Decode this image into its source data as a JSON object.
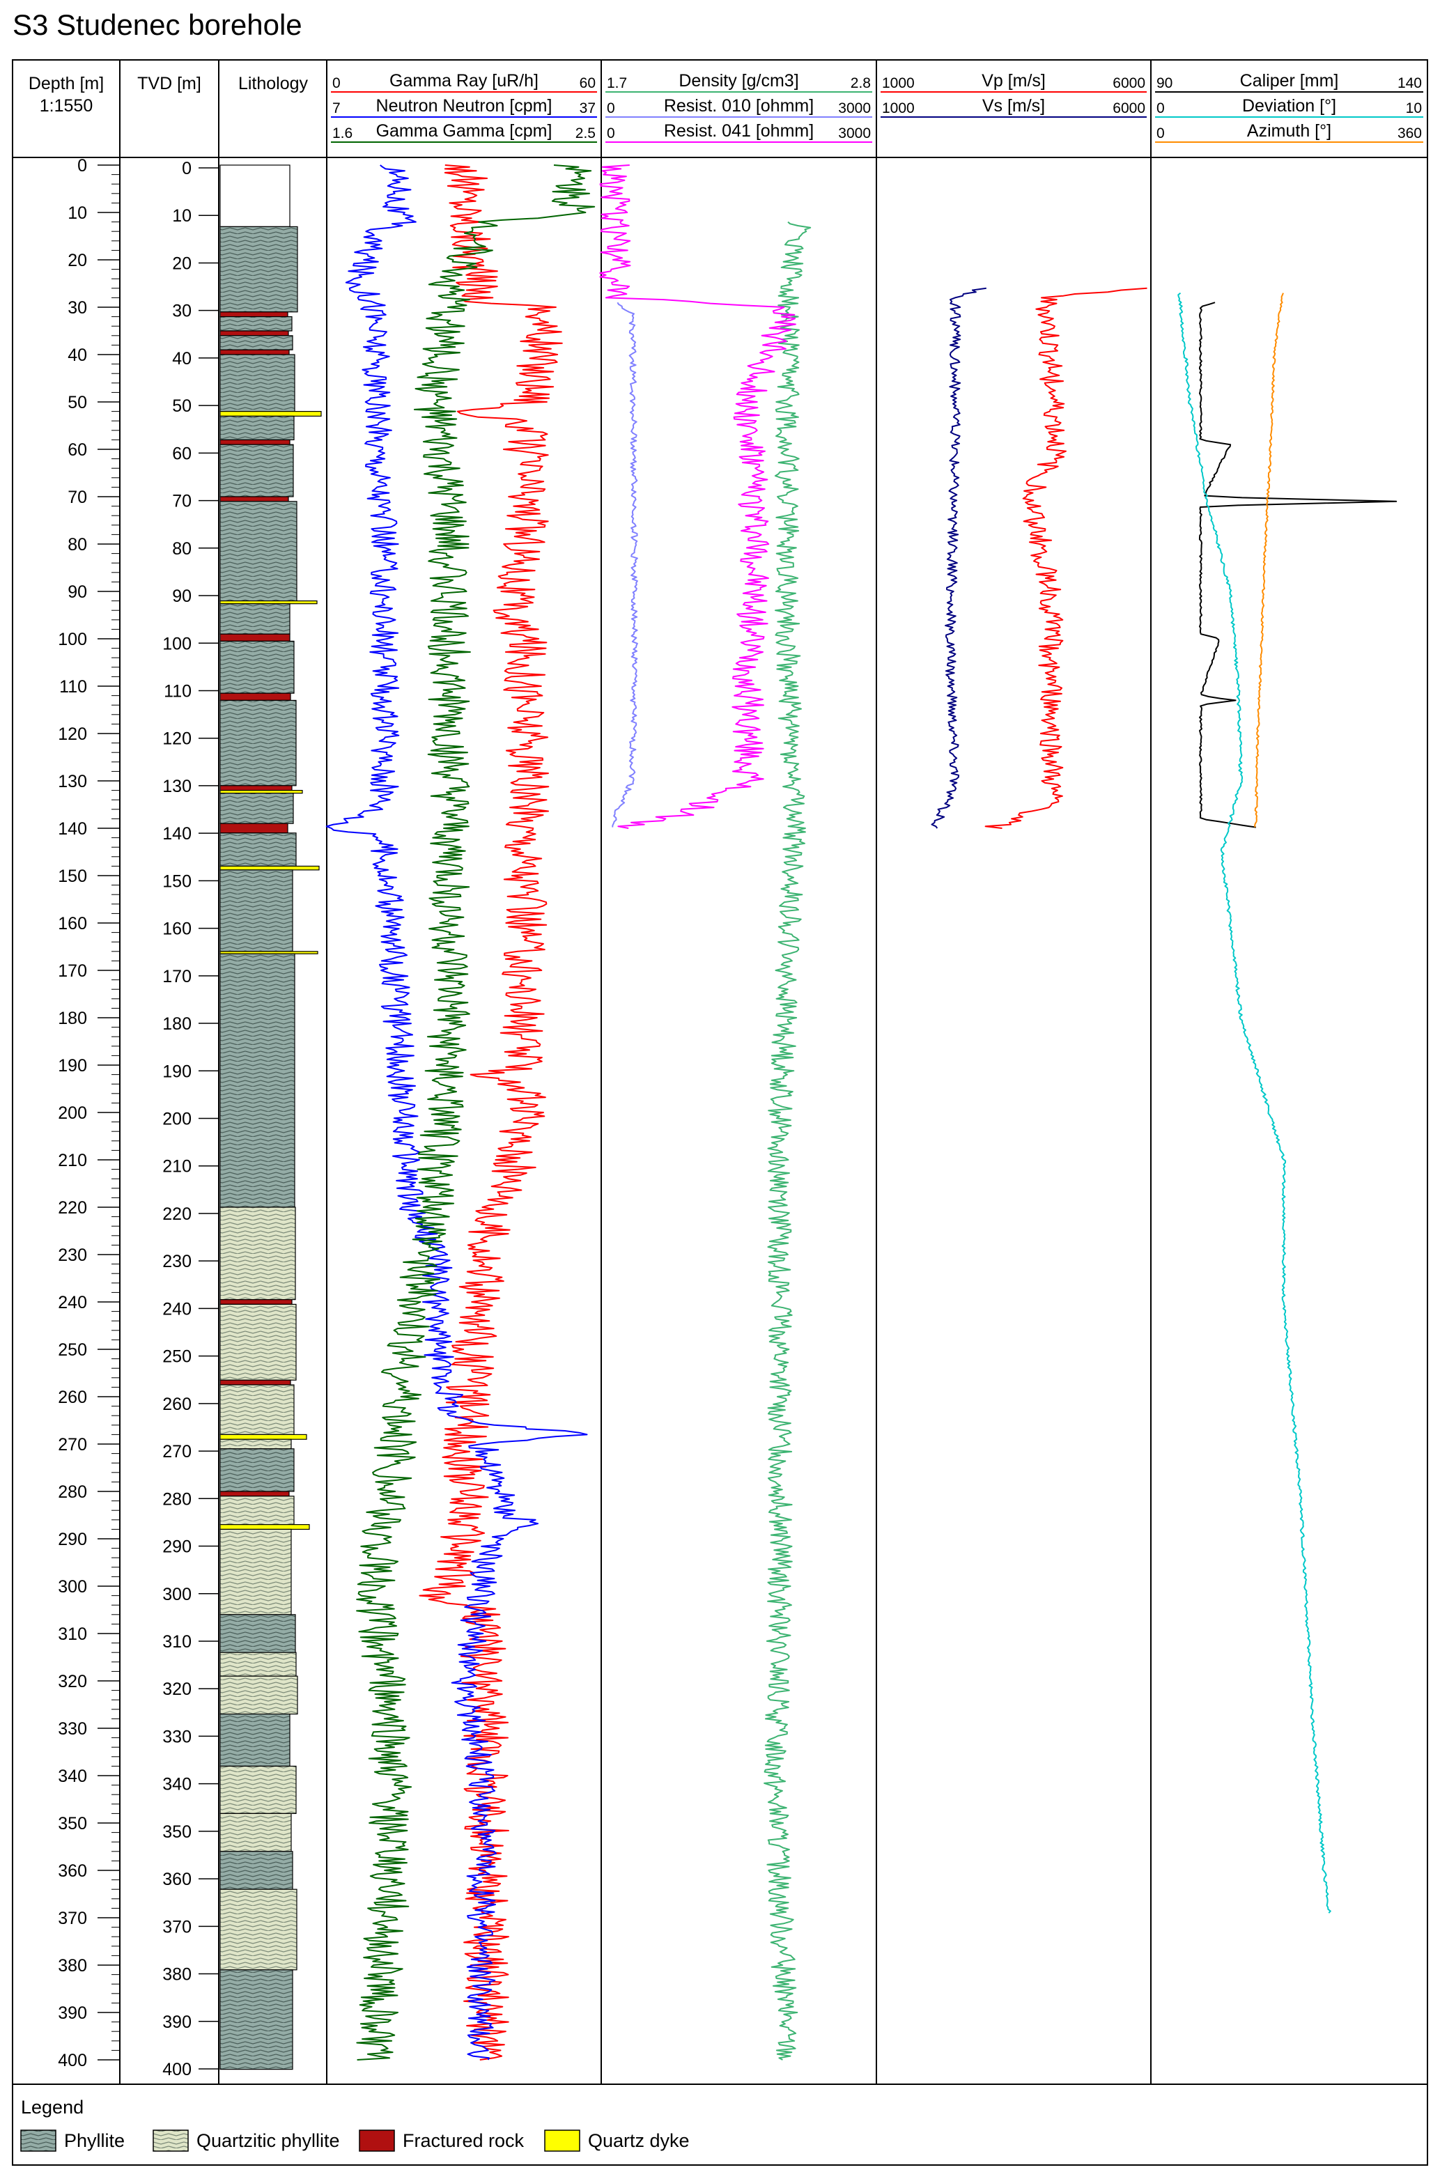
{
  "title": "S3 Studenec borehole",
  "columns": {
    "depth": {
      "label": "Depth [m]",
      "scale": "1:1550"
    },
    "tvd": {
      "label": "TVD [m]"
    },
    "lithology": {
      "label": "Lithology"
    }
  },
  "tracks": [
    {
      "curves": [
        {
          "name": "Gamma Ray [uR/h]",
          "min": "0",
          "max": "60",
          "color": "#ff0000"
        },
        {
          "name": "Neutron Neutron [cpm]",
          "min": "7",
          "max": "37",
          "color": "#0000ff"
        },
        {
          "name": "Gamma Gamma [cpm]",
          "min": "1.6",
          "max": "2.5",
          "color": "#006400"
        }
      ]
    },
    {
      "curves": [
        {
          "name": "Density [g/cm3]",
          "min": "1.7",
          "max": "2.8",
          "color": "#3cb371"
        },
        {
          "name": "Resist. 010 [ohmm]",
          "min": "0",
          "max": "3000",
          "color": "#8080ff"
        },
        {
          "name": "Resist. 041 [ohmm]",
          "min": "0",
          "max": "3000",
          "color": "#ff00ff"
        }
      ]
    },
    {
      "curves": [
        {
          "name": "Vp [m/s]",
          "min": "1000",
          "max": "6000",
          "color": "#ff0000"
        },
        {
          "name": "Vs [m/s]",
          "min": "1000",
          "max": "6000",
          "color": "#000080"
        }
      ]
    },
    {
      "curves": [
        {
          "name": "Caliper [mm]",
          "min": "90",
          "max": "140",
          "color": "#000000"
        },
        {
          "name": "Deviation [°]",
          "min": "0",
          "max": "10",
          "color": "#00c8c8"
        },
        {
          "name": "Azimuth [°]",
          "min": "0",
          "max": "360",
          "color": "#ff8c00"
        }
      ]
    }
  ],
  "depth_ticks": [
    "0",
    "10",
    "20",
    "30",
    "40",
    "50",
    "60",
    "70",
    "80",
    "90",
    "100",
    "110",
    "120",
    "130",
    "140",
    "150",
    "160",
    "170",
    "180",
    "190",
    "200",
    "210",
    "220",
    "230",
    "240",
    "250",
    "260",
    "270",
    "280",
    "290",
    "300",
    "310",
    "320",
    "330",
    "340",
    "350",
    "360",
    "370",
    "380",
    "390",
    "400"
  ],
  "legend": {
    "title": "Legend",
    "items": [
      {
        "label": "Phyllite",
        "pattern": "phyllite"
      },
      {
        "label": "Quartzitic phyllite",
        "pattern": "quartzitic"
      },
      {
        "label": "Fractured rock",
        "pattern": "fractured"
      },
      {
        "label": "Quartz dyke",
        "pattern": "dyke"
      }
    ]
  },
  "chart_data": {
    "type": "line",
    "title": "S3 Studenec borehole",
    "y_axis": {
      "label": "Depth [m]",
      "range": [
        0,
        400
      ],
      "inverted": true,
      "tick_step": 10
    },
    "lithology": [
      {
        "top": 0,
        "bottom": 13,
        "type": "none"
      },
      {
        "top": 13,
        "bottom": 31,
        "type": "phyllite"
      },
      {
        "top": 31,
        "bottom": 32,
        "type": "fractured"
      },
      {
        "top": 32,
        "bottom": 35,
        "type": "phyllite"
      },
      {
        "top": 35,
        "bottom": 36,
        "type": "fractured"
      },
      {
        "top": 36,
        "bottom": 39,
        "type": "phyllite"
      },
      {
        "top": 39,
        "bottom": 40,
        "type": "fractured"
      },
      {
        "top": 40,
        "bottom": 52,
        "type": "phyllite"
      },
      {
        "top": 52,
        "bottom": 53,
        "type": "dyke"
      },
      {
        "top": 53,
        "bottom": 58,
        "type": "phyllite"
      },
      {
        "top": 58,
        "bottom": 59,
        "type": "fractured"
      },
      {
        "top": 59,
        "bottom": 70,
        "type": "phyllite"
      },
      {
        "top": 70,
        "bottom": 71,
        "type": "fractured"
      },
      {
        "top": 71,
        "bottom": 92,
        "type": "phyllite"
      },
      {
        "top": 92,
        "bottom": 92.6,
        "type": "dyke"
      },
      {
        "top": 92.6,
        "bottom": 99,
        "type": "phyllite"
      },
      {
        "top": 99,
        "bottom": 100.5,
        "type": "fractured"
      },
      {
        "top": 100.5,
        "bottom": 111.5,
        "type": "phyllite"
      },
      {
        "top": 111.5,
        "bottom": 113,
        "type": "fractured"
      },
      {
        "top": 113,
        "bottom": 131,
        "type": "phyllite"
      },
      {
        "top": 131,
        "bottom": 132,
        "type": "fractured"
      },
      {
        "top": 132,
        "bottom": 132.6,
        "type": "dyke"
      },
      {
        "top": 132.6,
        "bottom": 139,
        "type": "phyllite"
      },
      {
        "top": 139,
        "bottom": 141,
        "type": "fractured"
      },
      {
        "top": 141,
        "bottom": 148,
        "type": "phyllite"
      },
      {
        "top": 148,
        "bottom": 148.8,
        "type": "dyke"
      },
      {
        "top": 148.8,
        "bottom": 166,
        "type": "phyllite"
      },
      {
        "top": 166,
        "bottom": 166.5,
        "type": "dyke"
      },
      {
        "top": 166.5,
        "bottom": 220,
        "type": "phyllite"
      },
      {
        "top": 220,
        "bottom": 239.5,
        "type": "quartzitic"
      },
      {
        "top": 239.5,
        "bottom": 240.5,
        "type": "fractured"
      },
      {
        "top": 240.5,
        "bottom": 256.5,
        "type": "quartzitic"
      },
      {
        "top": 256.5,
        "bottom": 257.5,
        "type": "fractured"
      },
      {
        "top": 257.5,
        "bottom": 268,
        "type": "quartzitic"
      },
      {
        "top": 268,
        "bottom": 269,
        "type": "dyke"
      },
      {
        "top": 269,
        "bottom": 271,
        "type": "quartzitic"
      },
      {
        "top": 271,
        "bottom": 280,
        "type": "phyllite"
      },
      {
        "top": 280,
        "bottom": 281,
        "type": "fractured"
      },
      {
        "top": 281,
        "bottom": 287,
        "type": "quartzitic"
      },
      {
        "top": 287,
        "bottom": 288,
        "type": "dyke"
      },
      {
        "top": 288,
        "bottom": 306,
        "type": "quartzitic"
      },
      {
        "top": 306,
        "bottom": 314,
        "type": "phyllite"
      },
      {
        "top": 314,
        "bottom": 319,
        "type": "quartzitic"
      },
      {
        "top": 319,
        "bottom": 327,
        "type": "quartzitic"
      },
      {
        "top": 327,
        "bottom": 338,
        "type": "phyllite"
      },
      {
        "top": 338,
        "bottom": 348,
        "type": "quartzitic"
      },
      {
        "top": 348,
        "bottom": 356,
        "type": "quartzitic"
      },
      {
        "top": 356,
        "bottom": 364,
        "type": "phyllite"
      },
      {
        "top": 364,
        "bottom": 381,
        "type": "quartzitic"
      },
      {
        "top": 381,
        "bottom": 402,
        "type": "phyllite"
      }
    ],
    "series": [
      {
        "name": "Gamma Ray [uR/h]",
        "track": 0,
        "color": "#ff0000",
        "range": [
          0,
          60
        ],
        "depth_range": [
          0,
          400
        ],
        "profile": [
          [
            0,
            30
          ],
          [
            13,
            31
          ],
          [
            29,
            34
          ],
          [
            30,
            48
          ],
          [
            50,
            46
          ],
          [
            52,
            30
          ],
          [
            55,
            44
          ],
          [
            80,
            44
          ],
          [
            95,
            40
          ],
          [
            100,
            44
          ],
          [
            140,
            44
          ],
          [
            145,
            44
          ],
          [
            190,
            43
          ],
          [
            192,
            36
          ],
          [
            195,
            44
          ],
          [
            219,
            40
          ],
          [
            221,
            35
          ],
          [
            225,
            36
          ],
          [
            240,
            33
          ],
          [
            260,
            31
          ],
          [
            270,
            30
          ],
          [
            285,
            31
          ],
          [
            300,
            27
          ],
          [
            302,
            22
          ],
          [
            305,
            34
          ],
          [
            330,
            35
          ],
          [
            400,
            35
          ]
        ]
      },
      {
        "name": "Neutron Neutron [cpm]",
        "track": 0,
        "color": "#0000ff",
        "range": [
          7,
          37
        ],
        "depth_range": [
          0,
          400
        ],
        "profile": [
          [
            0,
            14
          ],
          [
            6,
            15
          ],
          [
            8,
            14
          ],
          [
            12,
            15
          ],
          [
            14,
            12
          ],
          [
            25,
            10
          ],
          [
            29,
            12
          ],
          [
            50,
            12
          ],
          [
            80,
            13
          ],
          [
            110,
            13
          ],
          [
            135,
            13
          ],
          [
            138,
            10
          ],
          [
            140,
            7
          ],
          [
            142,
            13
          ],
          [
            220,
            16
          ],
          [
            230,
            19
          ],
          [
            250,
            19
          ],
          [
            265,
            21
          ],
          [
            268,
            36
          ],
          [
            270,
            24
          ],
          [
            285,
            27
          ],
          [
            287,
            30
          ],
          [
            290,
            25
          ],
          [
            320,
            22
          ],
          [
            340,
            24
          ],
          [
            360,
            24
          ],
          [
            400,
            24
          ]
        ]
      },
      {
        "name": "Gamma Gamma [cpm]",
        "track": 0,
        "color": "#006400",
        "range": [
          1.6,
          2.5
        ],
        "depth_range": [
          0,
          400
        ],
        "profile": [
          [
            0,
            2.42
          ],
          [
            10,
            2.42
          ],
          [
            12,
            2.15
          ],
          [
            25,
            2.0
          ],
          [
            30,
            2.0
          ],
          [
            50,
            1.95
          ],
          [
            80,
            2.0
          ],
          [
            100,
            2.0
          ],
          [
            140,
            2.0
          ],
          [
            180,
            2.0
          ],
          [
            220,
            1.95
          ],
          [
            250,
            1.85
          ],
          [
            270,
            1.82
          ],
          [
            300,
            1.75
          ],
          [
            330,
            1.8
          ],
          [
            360,
            1.8
          ],
          [
            400,
            1.75
          ]
        ]
      },
      {
        "name": "Density [g/cm3]",
        "track": 1,
        "color": "#3cb371",
        "range": [
          1.7,
          2.8
        ],
        "depth_range": [
          12,
          400
        ],
        "profile": [
          [
            12,
            2.5
          ],
          [
            30,
            2.45
          ],
          [
            60,
            2.45
          ],
          [
            100,
            2.45
          ],
          [
            140,
            2.48
          ],
          [
            200,
            2.42
          ],
          [
            260,
            2.42
          ],
          [
            300,
            2.42
          ],
          [
            340,
            2.4
          ],
          [
            400,
            2.45
          ]
        ]
      },
      {
        "name": "Resist. 010 [ohmm]",
        "track": 1,
        "color": "#8080ff",
        "range": [
          0,
          3000
        ],
        "depth_range": [
          29,
          140
        ],
        "profile": [
          [
            29,
            100
          ],
          [
            31,
            300
          ],
          [
            60,
            320
          ],
          [
            100,
            330
          ],
          [
            130,
            300
          ],
          [
            138,
            100
          ],
          [
            140,
            60
          ]
        ]
      },
      {
        "name": "Resist. 041 [ohmm]",
        "track": 1,
        "color": "#ff00ff",
        "range": [
          0,
          3000
        ],
        "depth_range": [
          0,
          140
        ],
        "profile": [
          [
            0,
            100
          ],
          [
            28,
            100
          ],
          [
            29,
            1200
          ],
          [
            30,
            2000
          ],
          [
            32,
            2000
          ],
          [
            50,
            1600
          ],
          [
            80,
            1700
          ],
          [
            110,
            1600
          ],
          [
            130,
            1600
          ],
          [
            137,
            900
          ],
          [
            140,
            100
          ]
        ]
      },
      {
        "name": "Vp [m/s]",
        "track": 2,
        "color": "#ff0000",
        "range": [
          1000,
          6000
        ],
        "depth_range": [
          26,
          140
        ],
        "profile": [
          [
            26,
            5800
          ],
          [
            28,
            4100
          ],
          [
            60,
            4300
          ],
          [
            70,
            3800
          ],
          [
            90,
            4200
          ],
          [
            120,
            4200
          ],
          [
            135,
            4200
          ],
          [
            140,
            3100
          ]
        ]
      },
      {
        "name": "Vs [m/s]",
        "track": 2,
        "color": "#000080",
        "range": [
          1000,
          6000
        ],
        "depth_range": [
          26,
          140
        ],
        "profile": [
          [
            26,
            2900
          ],
          [
            28,
            2400
          ],
          [
            60,
            2400
          ],
          [
            100,
            2300
          ],
          [
            130,
            2400
          ],
          [
            138,
            2100
          ],
          [
            140,
            2000
          ]
        ]
      },
      {
        "name": "Caliper [mm]",
        "track": 3,
        "color": "#000000",
        "range": [
          90,
          140
        ],
        "depth_range": [
          29,
          140
        ],
        "profile": [
          [
            29,
            101
          ],
          [
            30,
            98.5
          ],
          [
            58,
            98.5
          ],
          [
            59,
            104
          ],
          [
            70,
            99
          ],
          [
            71,
            135
          ],
          [
            72,
            98.5
          ],
          [
            99,
            98.5
          ],
          [
            100,
            102
          ],
          [
            112,
            98.5
          ],
          [
            113,
            105
          ],
          [
            114,
            98.5
          ],
          [
            138,
            98.5
          ],
          [
            140,
            110
          ]
        ]
      },
      {
        "name": "Deviation [°]",
        "track": 3,
        "color": "#00c8c8",
        "range": [
          0,
          10
        ],
        "depth_range": [
          27,
          369
        ],
        "profile": [
          [
            27,
            0.9
          ],
          [
            50,
            1.3
          ],
          [
            70,
            1.9
          ],
          [
            90,
            2.8
          ],
          [
            110,
            3.1
          ],
          [
            130,
            3.2
          ],
          [
            145,
            2.5
          ],
          [
            180,
            3.2
          ],
          [
            210,
            4.8
          ],
          [
            240,
            4.8
          ],
          [
            280,
            5.4
          ],
          [
            300,
            5.6
          ],
          [
            330,
            5.9
          ],
          [
            360,
            6.3
          ],
          [
            369,
            6.5
          ]
        ]
      },
      {
        "name": "Azimuth [°]",
        "track": 3,
        "color": "#ff8c00",
        "range": [
          0,
          360
        ],
        "depth_range": [
          27,
          140
        ],
        "profile": [
          [
            27,
            171
          ],
          [
            40,
            160
          ],
          [
            60,
            155
          ],
          [
            80,
            148
          ],
          [
            100,
            143
          ],
          [
            120,
            138
          ],
          [
            140,
            135
          ]
        ]
      }
    ]
  }
}
